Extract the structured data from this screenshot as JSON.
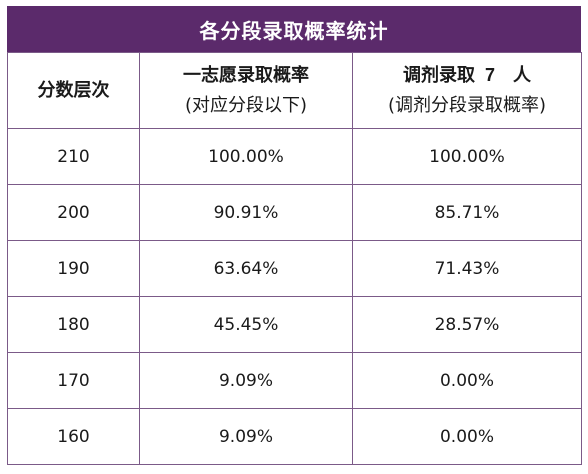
{
  "title": "各分段录取概率统计",
  "headers": {
    "col1": "分数层次",
    "col2_line1": "一志愿录取概率",
    "col2_line2": "(对应分段以下)",
    "col3_prefix": "调剂录取",
    "col3_count": "7",
    "col3_suffix": "人",
    "col3_line2": "(调剂分段录取概率)"
  },
  "rows": [
    {
      "score": "210",
      "first_choice": "100.00%",
      "adjust": "100.00%"
    },
    {
      "score": "200",
      "first_choice": "90.91%",
      "adjust": "85.71%"
    },
    {
      "score": "190",
      "first_choice": "63.64%",
      "adjust": "71.43%"
    },
    {
      "score": "180",
      "first_choice": "45.45%",
      "adjust": "28.57%"
    },
    {
      "score": "170",
      "first_choice": "9.09%",
      "adjust": "0.00%"
    },
    {
      "score": "160",
      "first_choice": "9.09%",
      "adjust": "0.00%"
    }
  ],
  "colors": {
    "header_bg": "#5b2a6b",
    "border": "#7b5a88"
  }
}
